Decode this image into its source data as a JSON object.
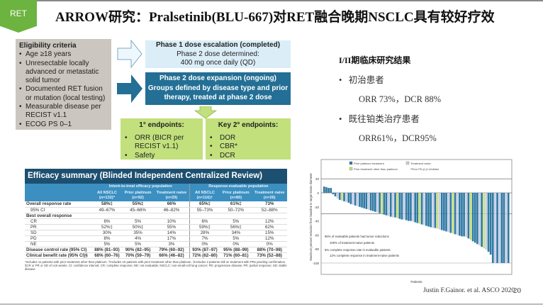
{
  "header": {
    "tab": "RET",
    "title": "ARROW研究：Pralsetinib(BLU-667)对RET融合晚期NSCLC具有较好疗效"
  },
  "eligibility": {
    "title": "Eligibility criteria",
    "items": [
      "Age ≥18 years",
      "Unresectable locally advanced or metastatic solid tumor",
      "Documented RET fusion or mutation (local testing)",
      "Measurable disease per RECIST v1.1",
      "ECOG PS 0–1"
    ]
  },
  "phase1": {
    "line1": "Phase 1 dose escalation (completed)",
    "line2": "Phase 2 dose determined:",
    "line3": "400 mg once daily (QD)"
  },
  "phase2": {
    "line1": "Phase 2 dose expansion (ongoing)",
    "line2": "Groups defined by disease type and prior therapy, treated at phase 2 dose"
  },
  "primary": {
    "title": "1° endpoints:",
    "items": [
      "ORR (BICR per RECIST v1.1)",
      "Safety"
    ]
  },
  "secondary": {
    "title": "Key 2° endpoints:",
    "items": [
      "DOR",
      "CBR*",
      "DCR"
    ]
  },
  "efficacy": {
    "title": "Efficacy summary (Blinded Independent Centralized Review)",
    "groups": [
      "Intent-to-treat efficacy population",
      "Response-evaluable population"
    ],
    "columns": [
      "All NSCLC (n=132)*",
      "Prior platinum (n=92)",
      "Treatment naive (n=29)",
      "All NSCLC (n=116)†",
      "Prior platinum (n=80)",
      "Treatment naive (n=26)"
    ],
    "rows": [
      {
        "label": "Overall response rate",
        "values": [
          "58%‡",
          "55%‡",
          "66%",
          "65%‡",
          "61%‡",
          "73%"
        ],
        "style": "b"
      },
      {
        "label": "95% CI",
        "values": [
          "49–67%",
          "45–66%",
          "46–82%",
          "55–73%",
          "50–72%",
          "52–88%"
        ],
        "style": "sub"
      },
      {
        "label": "Best overall response",
        "values": [
          "",
          "",
          "",
          "",
          "",
          ""
        ],
        "style": "b"
      },
      {
        "label": "CR",
        "values": [
          "6%",
          "5%",
          "10%",
          "6%",
          "5%",
          "12%"
        ],
        "style": "sub"
      },
      {
        "label": "PR",
        "values": [
          "52%‡",
          "50%‡",
          "55%",
          "59%‡",
          "56%‡",
          "62%"
        ],
        "style": "sub"
      },
      {
        "label": "SD",
        "values": [
          "30%",
          "35%",
          "14%",
          "28%",
          "34%",
          "15%"
        ],
        "style": "sub"
      },
      {
        "label": "PD",
        "values": [
          "8%",
          "4%",
          "17%",
          "7%",
          "5%",
          "12%"
        ],
        "style": "sub"
      },
      {
        "label": "NE",
        "values": [
          "5%",
          "5%",
          "3%",
          "0%",
          "0%",
          "0%"
        ],
        "style": "sub"
      },
      {
        "label": "Disease control rate (95% CI)",
        "values": [
          "88% (81–93)",
          "90% (82–95)",
          "79% (60–92)",
          "93% (87–97)",
          "95% (88–99)",
          "88% (70–98)"
        ],
        "style": "b"
      },
      {
        "label": "Clinical benefit rate (95% CI)§",
        "values": [
          "68% (60–76)",
          "70% (59–79)",
          "66% (46–82)",
          "72% (62–80)",
          "71% (60–81)",
          "73% (52–88)"
        ],
        "style": "b"
      }
    ],
    "footnote": "*Includes 11 patients with prior treatment other than platinum. †Includes 10 patients with prior treatment other than platinum. ‡Includes 2 patients still on treatment with PRs pending confirmation. §CR or PR or SD of ≥16 weeks. CI: confidence interval; CR: complete response; NE: not evaluable; NSCLC: non-small-cell lung cancer; PD: progressive disease; PR: partial response; SD: stable disease"
  },
  "results": {
    "title": "I/II期临床研究结果",
    "items": [
      {
        "label": "初治患者",
        "value": "ORR 73%，DCR 88%"
      },
      {
        "label": "既往铂类治疗患者",
        "value": "ORR61%，DCR95%"
      }
    ]
  },
  "chart_data": {
    "type": "bar",
    "subtype": "waterfall",
    "ylabel": "Maximum percent reduction from baseline in target lesion diameter",
    "xlabel": "Patients",
    "ylim": [
      -110,
      40
    ],
    "yticks": [
      20,
      0,
      -20,
      -40,
      -60,
      -80,
      -100
    ],
    "reference_lines": [
      20,
      -30
    ],
    "legend": [
      {
        "name": "Prior platinum treatment",
        "color": "#2f7aa3",
        "key": "P"
      },
      {
        "name": "Treatment naive",
        "color": "#c9cde6",
        "key": "N"
      },
      {
        "name": "Prior treatment other than platinum",
        "color": "#c8e07a",
        "key": "O"
      },
      {
        "name": "*Prior PD-(L)1 inhibitor",
        "color": "",
        "key": ""
      }
    ],
    "annotations": [
      "96% of evaluable patients had tumor reductions",
      "100% of treatment-naive patients",
      "6% complete response rate in evaluable patients",
      "12% complete response in treatment-naive patients"
    ],
    "values": [
      9,
      8,
      7,
      7,
      -2,
      -5,
      -8,
      -10,
      -11,
      -12,
      -13,
      -14,
      -16,
      -17,
      -18,
      -19,
      -20,
      -21,
      -22,
      -23,
      -24,
      -25,
      -26,
      -27,
      -28,
      -29,
      -30,
      -31,
      -32,
      -33,
      -34,
      -35,
      -35,
      -36,
      -37,
      -38,
      -38,
      -39,
      -40,
      -40,
      -41,
      -42,
      -43,
      -44,
      -45,
      -46,
      -47,
      -48,
      -49,
      -50,
      -50,
      -51,
      -52,
      -53,
      -54,
      -55,
      -56,
      -57,
      -58,
      -59,
      -60,
      -61,
      -62,
      -62,
      -63,
      -65,
      -67,
      -69,
      -71,
      -73,
      -75,
      -77,
      -79,
      -81,
      -84,
      -88,
      -100,
      -100,
      -100,
      -100,
      -100,
      -100,
      -100,
      -100
    ],
    "groups": "PPPPPPNPOPNPPNPNPPPPNPPPNPOPPNPNPOPPNPPPNPPOPNPPPNPONPPPNPOPNPPPNPOPPPNPONPPPNPNPPNP"
  },
  "citation": "Justin F.Gainor. et al. ASCO 2020",
  "page_number": "20"
}
